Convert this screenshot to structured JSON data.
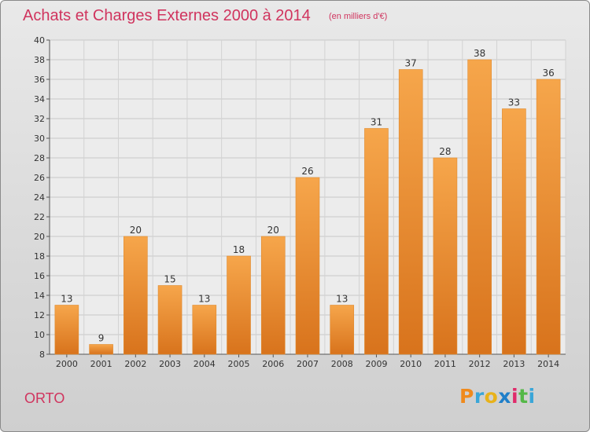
{
  "header": {
    "title": "Achats et Charges Externes 2000 à 2014",
    "subtitle": "(en milliers d'€)"
  },
  "footer": {
    "commune": "ORTO",
    "logo_text": "Proxiti",
    "logo_colors": [
      "#f08a1c",
      "#3aa6d8",
      "#e8b21a",
      "#1f7fc9",
      "#e02b6b",
      "#55b848",
      "#3aa6d8"
    ]
  },
  "chart_data": {
    "type": "bar",
    "categories": [
      "2000",
      "2001",
      "2002",
      "2003",
      "2004",
      "2005",
      "2006",
      "2007",
      "2008",
      "2009",
      "2010",
      "2011",
      "2012",
      "2013",
      "2014"
    ],
    "values": [
      13,
      9,
      20,
      15,
      13,
      18,
      20,
      26,
      13,
      31,
      37,
      28,
      38,
      33,
      36
    ],
    "ylim": [
      8,
      40
    ],
    "yticks": [
      8,
      10,
      12,
      14,
      16,
      18,
      20,
      22,
      24,
      26,
      28,
      30,
      32,
      34,
      36,
      38,
      40
    ],
    "grid": true,
    "bar_color": "#f29a3a",
    "bar_color_dark": "#d9741c"
  }
}
